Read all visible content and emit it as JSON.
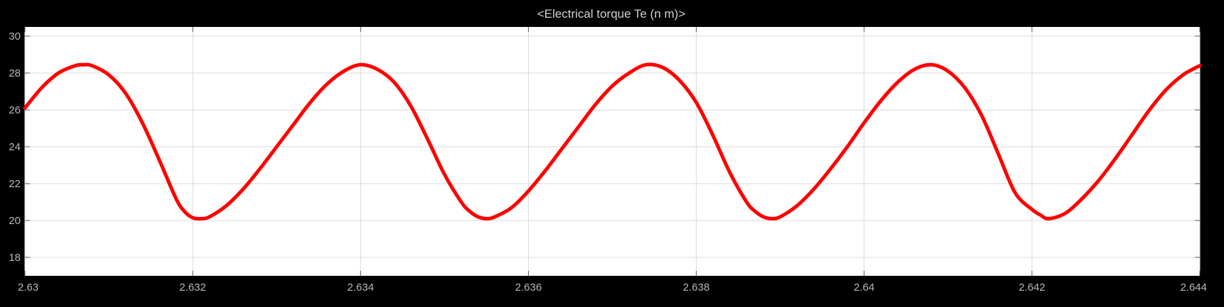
{
  "window": {
    "title": "<Electrical torque Te (n m)>"
  },
  "colors": {
    "background": "#000000",
    "plot_area": "#ffffff",
    "grid": "#d9d9d9",
    "tick_text": "#b8b8b8",
    "signal": "#ff0000"
  },
  "chart_data": {
    "type": "line",
    "title": "<Electrical torque Te (n m)>",
    "xlabel": "",
    "ylabel": "",
    "xlim": [
      2.63,
      2.644
    ],
    "ylim": [
      17,
      30.5
    ],
    "grid": true,
    "x_ticks": [
      2.63,
      2.632,
      2.634,
      2.636,
      2.638,
      2.64,
      2.642,
      2.644
    ],
    "x_tick_labels": [
      "2.63",
      "2.632",
      "2.634",
      "2.636",
      "2.638",
      "2.64",
      "2.642",
      "2.644"
    ],
    "y_ticks": [
      18,
      20,
      22,
      24,
      26,
      28,
      30
    ],
    "y_tick_labels": [
      "18",
      "20",
      "22",
      "24",
      "26",
      "28",
      "30"
    ],
    "series": [
      {
        "color": "#ff0000",
        "x": [
          2.63,
          2.6302,
          2.6304,
          2.6306,
          2.6307,
          2.6308,
          2.631,
          2.6312,
          2.6314,
          2.6316,
          2.6318,
          2.6319,
          2.632,
          2.6321,
          2.6322,
          2.6324,
          2.6326,
          2.6328,
          2.633,
          2.6332,
          2.6334,
          2.6336,
          2.6338,
          2.634,
          2.6342,
          2.6344,
          2.6346,
          2.6348,
          2.635,
          2.6352,
          2.6353,
          2.6354,
          2.6355,
          2.6356,
          2.6358,
          2.636,
          2.6362,
          2.6364,
          2.6366,
          2.6368,
          2.637,
          2.6372,
          2.6374,
          2.6376,
          2.6378,
          2.638,
          2.6382,
          2.6384,
          2.6386,
          2.6387,
          2.6388,
          2.6389,
          2.639,
          2.6392,
          2.6394,
          2.6396,
          2.6398,
          2.64,
          2.6402,
          2.6404,
          2.6406,
          2.6408,
          2.641,
          2.6412,
          2.6414,
          2.6416,
          2.6418,
          2.642,
          2.6421,
          2.6422,
          2.6424,
          2.6426,
          2.6428,
          2.643,
          2.6432,
          2.6434,
          2.6436,
          2.6438,
          2.644
        ],
        "y": [
          26.1,
          27.2,
          28.0,
          28.4,
          28.45,
          28.4,
          27.9,
          26.9,
          25.3,
          23.3,
          21.2,
          20.5,
          20.15,
          20.1,
          20.2,
          20.8,
          21.7,
          22.8,
          24.0,
          25.2,
          26.4,
          27.4,
          28.1,
          28.45,
          28.2,
          27.5,
          26.2,
          24.4,
          22.5,
          21.0,
          20.5,
          20.2,
          20.1,
          20.2,
          20.7,
          21.6,
          22.7,
          23.9,
          25.1,
          26.3,
          27.3,
          28.0,
          28.45,
          28.3,
          27.6,
          26.4,
          24.6,
          22.6,
          21.0,
          20.5,
          20.2,
          20.1,
          20.2,
          20.8,
          21.7,
          22.8,
          24.0,
          25.3,
          26.5,
          27.5,
          28.2,
          28.45,
          28.1,
          27.2,
          25.7,
          23.6,
          21.5,
          20.6,
          20.3,
          20.1,
          20.4,
          21.2,
          22.2,
          23.4,
          24.7,
          26.0,
          27.1,
          27.9,
          28.4
        ]
      }
    ]
  }
}
